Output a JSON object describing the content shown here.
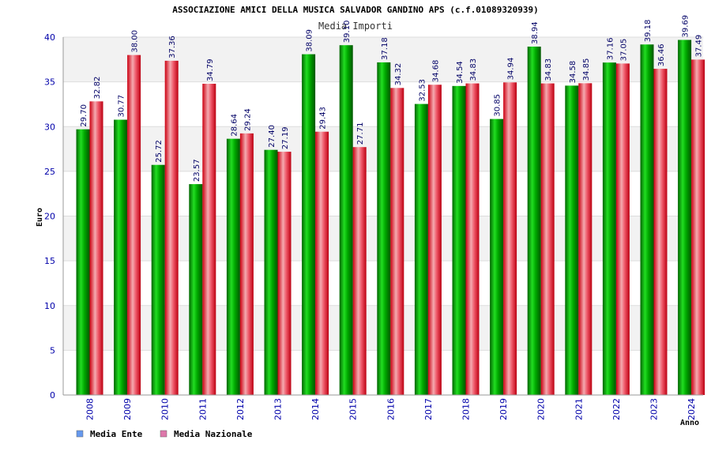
{
  "chart_data": {
    "type": "bar",
    "title": "ASSOCIAZIONE AMICI DELLA MUSICA SALVADOR GANDINO APS (c.f.01089320939)",
    "subtitle": "Media Importi",
    "xlabel": "Anno",
    "ylabel": "Euro",
    "ylim": [
      0,
      40
    ],
    "yticks": [
      "0",
      "5",
      "10",
      "15",
      "20",
      "25",
      "30",
      "35",
      "40"
    ],
    "grid": true,
    "legend_position": "bottom-left",
    "categories": [
      "2008",
      "2009",
      "2010",
      "2011",
      "2012",
      "2013",
      "2014",
      "2015",
      "2016",
      "2017",
      "2018",
      "2019",
      "2020",
      "2021",
      "2022",
      "2023",
      "2024"
    ],
    "series": [
      {
        "name": "Media Ente",
        "color": "#00aa00",
        "legend_color": "#6699ee",
        "values": [
          29.7,
          30.77,
          25.72,
          23.57,
          28.64,
          27.4,
          38.09,
          39.1,
          37.18,
          32.53,
          34.54,
          30.85,
          38.94,
          34.58,
          37.16,
          39.18,
          39.69
        ],
        "labels": [
          "29.70",
          "30.77",
          "25.72",
          "23.57",
          "28.64",
          "27.40",
          "38.09",
          "39.10",
          "37.18",
          "32.53",
          "34.54",
          "30.85",
          "38.94",
          "34.58",
          "37.16",
          "39.18",
          "39.69"
        ]
      },
      {
        "name": "Media Nazionale",
        "color": "#ee2233",
        "legend_color": "#dd77aa",
        "values": [
          32.82,
          38.0,
          37.36,
          34.79,
          29.24,
          27.19,
          29.43,
          27.71,
          34.32,
          34.68,
          34.83,
          34.94,
          34.83,
          34.85,
          37.05,
          36.46,
          37.49
        ],
        "labels": [
          "32.82",
          "38.00",
          "37.36",
          "34.79",
          "29.24",
          "27.19",
          "29.43",
          "27.71",
          "34.32",
          "34.68",
          "34.83",
          "34.94",
          "34.83",
          "34.85",
          "37.05",
          "36.46",
          "37.49"
        ]
      }
    ]
  }
}
